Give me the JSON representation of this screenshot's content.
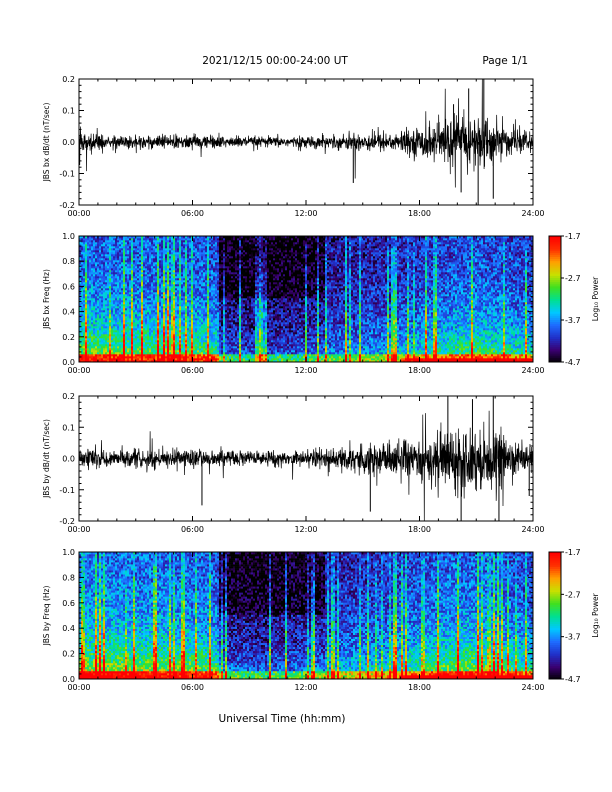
{
  "header": {
    "title": "2021/12/15  00:00-24:00 UT",
    "page": "Page 1/1"
  },
  "footer": {
    "xlabel": "Universal Time (hh:mm)"
  },
  "colors": {
    "trace": "#000000",
    "colormap": [
      "#000000",
      "#3a0070",
      "#2030c8",
      "#1e6cff",
      "#00c8ff",
      "#00e090",
      "#40e020",
      "#c8e000",
      "#ffa000",
      "#ff3000",
      "#ff0000"
    ]
  },
  "chart_data": [
    {
      "type": "line",
      "ylabel": "JBS bx dB/dt (nT/sec)",
      "xlim": [
        0,
        24
      ],
      "ylim": [
        -0.2,
        0.2
      ],
      "x_tick_labels": [
        "00:00",
        "06:00",
        "12:00",
        "18:00",
        "24:00"
      ],
      "y_tick_labels": [
        "-0.2",
        "-0.1",
        "0.0",
        "0.1",
        "0.2"
      ],
      "envelope": {
        "hours": [
          0,
          1,
          3,
          6,
          9,
          12,
          14,
          15,
          16,
          17,
          18,
          19,
          20,
          21,
          22,
          23,
          24
        ],
        "amplitude": [
          0.03,
          0.02,
          0.02,
          0.02,
          0.015,
          0.015,
          0.02,
          0.03,
          0.025,
          0.03,
          0.04,
          0.06,
          0.07,
          0.08,
          0.06,
          0.03,
          0.025
        ]
      },
      "spikes": [
        [
          14.5,
          -0.13
        ],
        [
          20.2,
          -0.16
        ],
        [
          21.1,
          -0.2
        ],
        [
          21.4,
          0.2
        ],
        [
          20.6,
          0.17
        ],
        [
          21.9,
          -0.18
        ],
        [
          19.8,
          0.12
        ]
      ]
    },
    {
      "type": "heatmap",
      "ylabel": "JBS bx Freq (Hz)",
      "xlim": [
        0,
        24
      ],
      "ylim": [
        0,
        1.0
      ],
      "x_tick_labels": [
        "00:00",
        "06:00",
        "12:00",
        "18:00",
        "24:00"
      ],
      "y_tick_labels": [
        "0.0",
        "0.2",
        "0.4",
        "0.6",
        "0.8",
        "1.0"
      ],
      "colorbar_label": "Log₁₀ Power",
      "colorbar_range": [
        -4.7,
        -1.7
      ],
      "colorbar_ticks": [
        "-1.7",
        "-2.7",
        "-3.7",
        "-4.7"
      ],
      "quiet_onset_hour": 7.4,
      "activity_profile": {
        "hours": [
          0,
          3,
          6,
          7.3,
          7.5,
          10,
          12,
          14,
          16,
          18,
          19.5,
          21,
          22.5,
          24
        ],
        "level": [
          0.72,
          0.68,
          0.66,
          0.62,
          0.33,
          0.3,
          0.34,
          0.38,
          0.42,
          0.52,
          0.6,
          0.66,
          0.6,
          0.52
        ]
      }
    },
    {
      "type": "line",
      "ylabel": "JBS by dB/dt (nT/sec)",
      "xlim": [
        0,
        24
      ],
      "ylim": [
        -0.2,
        0.2
      ],
      "x_tick_labels": [
        "00:00",
        "06:00",
        "12:00",
        "18:00",
        "24:00"
      ],
      "y_tick_labels": [
        "-0.2",
        "-0.1",
        "0.0",
        "0.1",
        "0.2"
      ],
      "envelope": {
        "hours": [
          0,
          1,
          3,
          6,
          9,
          12,
          13,
          15,
          16,
          17,
          18,
          19,
          20,
          21,
          22,
          23,
          24
        ],
        "amplitude": [
          0.03,
          0.025,
          0.025,
          0.025,
          0.02,
          0.02,
          0.03,
          0.045,
          0.05,
          0.055,
          0.06,
          0.075,
          0.09,
          0.085,
          0.08,
          0.05,
          0.035
        ]
      },
      "spikes": [
        [
          6.5,
          -0.15
        ],
        [
          15.4,
          -0.17
        ],
        [
          19.5,
          0.2
        ],
        [
          20.2,
          -0.2
        ],
        [
          20.8,
          0.19
        ],
        [
          21.9,
          0.2
        ],
        [
          22.2,
          -0.2
        ],
        [
          23.8,
          -0.12
        ]
      ]
    },
    {
      "type": "heatmap",
      "ylabel": "JBS by Freq (Hz)",
      "xlim": [
        0,
        24
      ],
      "ylim": [
        0,
        1.0
      ],
      "x_tick_labels": [
        "00:00",
        "06:00",
        "12:00",
        "18:00",
        "24:00"
      ],
      "y_tick_labels": [
        "0.0",
        "0.2",
        "0.4",
        "0.6",
        "0.8",
        "1.0"
      ],
      "colorbar_label": "Log₁₀ Power",
      "colorbar_range": [
        -4.7,
        -1.7
      ],
      "colorbar_ticks": [
        "-1.7",
        "-2.7",
        "-3.7",
        "-4.7"
      ],
      "quiet_onset_hour": 7.4,
      "activity_profile": {
        "hours": [
          0,
          3,
          6,
          7.3,
          7.5,
          10,
          12,
          14,
          16,
          18,
          19.5,
          21,
          22.5,
          24
        ],
        "level": [
          0.78,
          0.74,
          0.7,
          0.66,
          0.38,
          0.34,
          0.4,
          0.46,
          0.52,
          0.62,
          0.7,
          0.72,
          0.66,
          0.58
        ]
      }
    }
  ]
}
